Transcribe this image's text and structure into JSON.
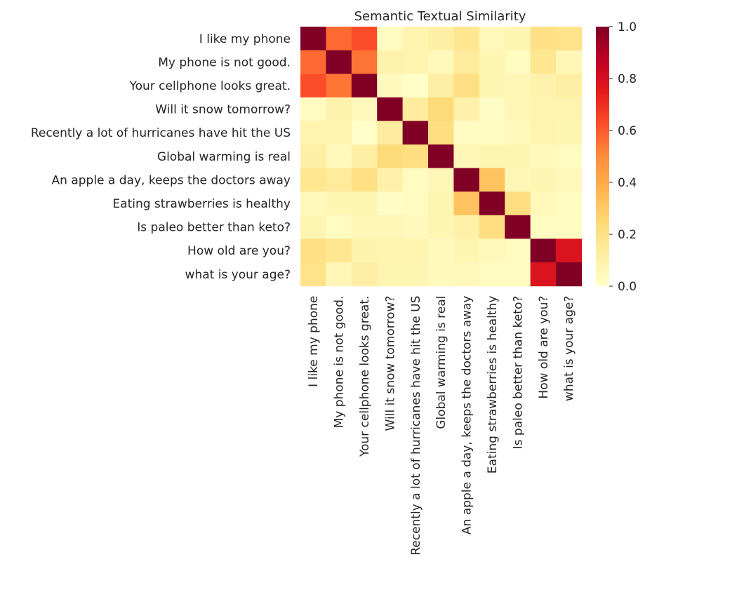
{
  "chart_data": {
    "type": "heatmap",
    "title": "Semantic Textual Similarity",
    "rows": [
      "I like my phone",
      "My phone is not good.",
      "Your cellphone looks great.",
      "Will it snow tomorrow?",
      "Recently a lot of hurricanes have hit the US",
      "Global warming is real",
      "An apple a day, keeps the doctors away",
      "Eating strawberries is healthy",
      "Is paleo better than keto?",
      "How old are you?",
      "what is your age?"
    ],
    "columns": [
      "I like my phone",
      "My phone is not good.",
      "Your cellphone looks great.",
      "Will it snow tomorrow?",
      "Recently a lot of hurricanes have hit the US",
      "Global warming is real",
      "An apple a day, keeps the doctors away",
      "Eating strawberries is healthy",
      "Is paleo better than keto?",
      "How old are you?",
      "what is your age?"
    ],
    "values": [
      [
        1.0,
        0.57,
        0.63,
        0.03,
        0.08,
        0.11,
        0.17,
        0.05,
        0.07,
        0.2,
        0.19
      ],
      [
        0.57,
        1.0,
        0.55,
        0.09,
        0.08,
        0.05,
        0.14,
        0.07,
        0.03,
        0.17,
        0.06
      ],
      [
        0.63,
        0.55,
        1.0,
        0.04,
        0.01,
        0.11,
        0.21,
        0.07,
        0.06,
        0.09,
        0.11
      ],
      [
        0.03,
        0.09,
        0.04,
        1.0,
        0.13,
        0.24,
        0.1,
        0.02,
        0.06,
        0.08,
        0.08
      ],
      [
        0.08,
        0.08,
        0.01,
        0.13,
        1.0,
        0.22,
        0.03,
        0.03,
        0.04,
        0.08,
        0.07
      ],
      [
        0.11,
        0.05,
        0.11,
        0.24,
        0.22,
        1.0,
        0.06,
        0.07,
        0.07,
        0.04,
        0.03
      ],
      [
        0.17,
        0.14,
        0.21,
        0.1,
        0.03,
        0.06,
        1.0,
        0.32,
        0.06,
        0.07,
        0.05
      ],
      [
        0.05,
        0.07,
        0.07,
        0.02,
        0.03,
        0.07,
        0.32,
        1.0,
        0.22,
        0.05,
        0.03
      ],
      [
        0.07,
        0.03,
        0.06,
        0.06,
        0.04,
        0.07,
        0.1,
        0.22,
        1.0,
        0.03,
        0.03
      ],
      [
        0.2,
        0.17,
        0.09,
        0.08,
        0.08,
        0.04,
        0.07,
        0.05,
        0.03,
        1.0,
        0.78
      ],
      [
        0.19,
        0.06,
        0.11,
        0.07,
        0.07,
        0.04,
        0.05,
        0.03,
        0.03,
        0.78,
        1.0
      ]
    ],
    "vmin": 0.0,
    "vmax": 1.0,
    "colormap": "YlOrRd",
    "colorbar_ticks": [
      "0.0",
      "0.2",
      "0.4",
      "0.6",
      "0.8",
      "1.0"
    ],
    "grid": false
  }
}
